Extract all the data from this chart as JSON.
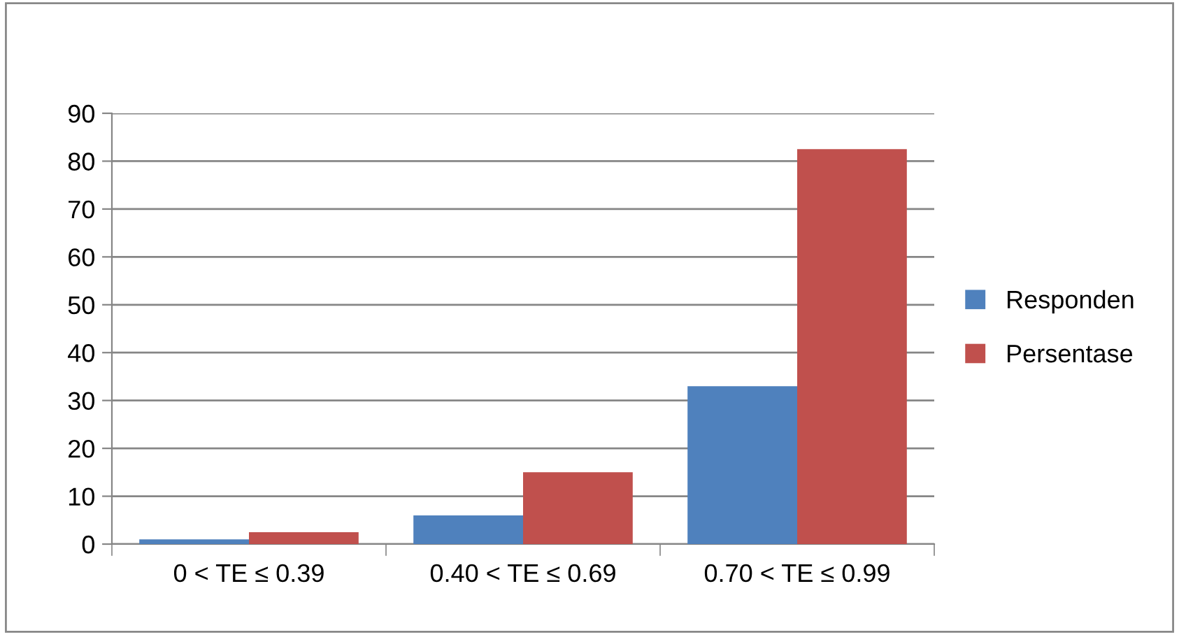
{
  "chart_data": {
    "type": "bar",
    "categories": [
      "0 < TE ≤ 0.39",
      "0.40 < TE ≤ 0.69",
      "0.70 < TE ≤ 0.99"
    ],
    "series": [
      {
        "name": "Responden",
        "color": "#4f81bd",
        "values": [
          1,
          6,
          33
        ]
      },
      {
        "name": "Persentase",
        "color": "#c0504d",
        "values": [
          2.5,
          15,
          82.5
        ]
      }
    ],
    "ylim": [
      0,
      90
    ],
    "yticks": [
      0,
      10,
      20,
      30,
      40,
      50,
      60,
      70,
      80,
      90
    ],
    "grid": "y",
    "legend": "right"
  }
}
